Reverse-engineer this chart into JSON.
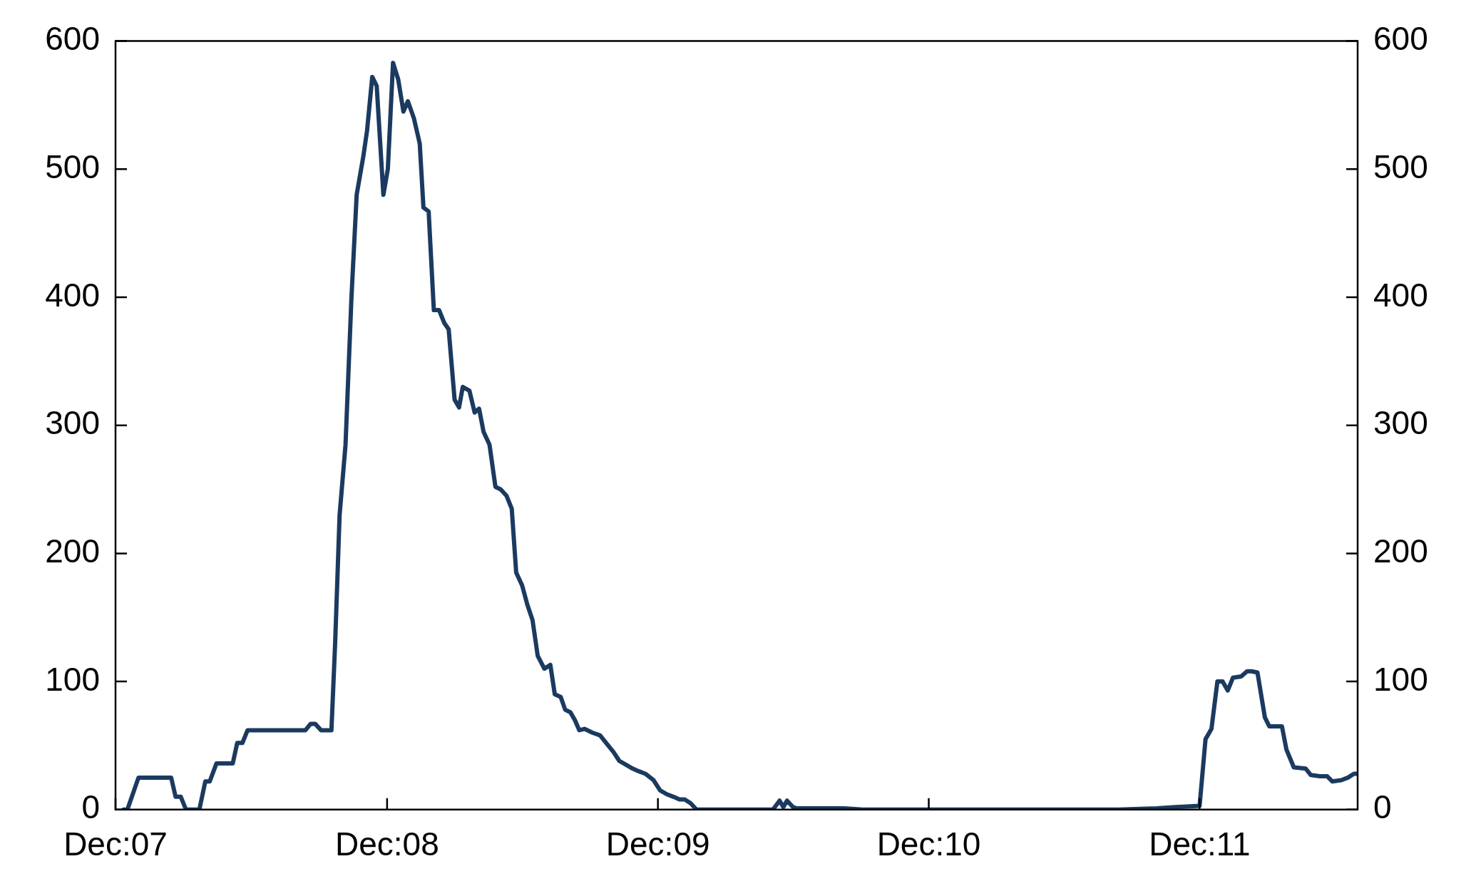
{
  "chart_data": {
    "type": "line",
    "xlim": [
      "2007-12-01",
      "2012-07-01"
    ],
    "xticks": [
      {
        "value": "2007-12-01",
        "label": "Dec:07"
      },
      {
        "value": "2008-12-01",
        "label": "Dec:08"
      },
      {
        "value": "2009-12-01",
        "label": "Dec:09"
      },
      {
        "value": "2010-12-01",
        "label": "Dec:10"
      },
      {
        "value": "2011-12-01",
        "label": "Dec:11"
      }
    ],
    "ylim": [
      0,
      600
    ],
    "yticks": [
      0,
      100,
      200,
      300,
      400,
      500,
      600
    ],
    "y2lim": [
      0,
      600
    ],
    "y2ticks": [
      0,
      100,
      200,
      300,
      400,
      500,
      600
    ],
    "marker": "none",
    "line_style": "solid",
    "series": [
      {
        "color": "#1b3a60",
        "x": [
          "2007-12-12",
          "2007-12-17",
          "2008-01-01",
          "2008-02-14",
          "2008-02-20",
          "2008-02-27",
          "2008-03-05",
          "2008-03-23",
          "2008-03-31",
          "2008-04-06",
          "2008-04-15",
          "2008-05-07",
          "2008-05-13",
          "2008-05-20",
          "2008-05-27",
          "2008-08-13",
          "2008-08-20",
          "2008-08-26",
          "2008-09-03",
          "2008-09-17",
          "2008-09-22",
          "2008-09-28",
          "2008-10-06",
          "2008-10-14",
          "2008-10-21",
          "2008-10-30",
          "2008-11-04",
          "2008-11-11",
          "2008-11-17",
          "2008-11-26",
          "2008-12-02",
          "2008-12-09",
          "2008-12-16",
          "2008-12-23",
          "2008-12-29",
          "2009-01-06",
          "2009-01-14",
          "2009-01-19",
          "2009-01-26",
          "2009-02-02",
          "2009-02-09",
          "2009-02-16",
          "2009-02-22",
          "2009-03-02",
          "2009-03-08",
          "2009-03-13",
          "2009-03-22",
          "2009-03-29",
          "2009-04-04",
          "2009-04-10",
          "2009-04-18",
          "2009-04-26",
          "2009-05-03",
          "2009-05-11",
          "2009-05-18",
          "2009-05-24",
          "2009-06-01",
          "2009-06-08",
          "2009-06-15",
          "2009-06-22",
          "2009-07-01",
          "2009-07-09",
          "2009-07-15",
          "2009-07-23",
          "2009-07-29",
          "2009-08-05",
          "2009-08-11",
          "2009-08-17",
          "2009-08-24",
          "2009-09-04",
          "2009-09-14",
          "2009-09-25",
          "2009-10-02",
          "2009-10-10",
          "2009-10-19",
          "2009-10-28",
          "2009-11-05",
          "2009-11-14",
          "2009-11-25",
          "2009-12-04",
          "2009-12-13",
          "2009-12-22",
          "2009-12-30",
          "2010-01-06",
          "2010-01-14",
          "2010-01-22",
          "2010-03-21",
          "2010-05-05",
          "2010-05-14",
          "2010-05-19",
          "2010-05-24",
          "2010-06-01",
          "2010-06-06",
          "2010-08-09",
          "2010-09-03",
          "2010-10-12",
          "2011-05-04",
          "2011-08-14",
          "2011-10-04",
          "2011-10-30",
          "2011-12-01",
          "2011-12-09",
          "2011-12-17",
          "2011-12-25",
          "2012-01-01",
          "2012-01-08",
          "2012-01-15",
          "2012-01-26",
          "2012-02-03",
          "2012-02-09",
          "2012-02-17",
          "2012-02-27",
          "2012-03-04",
          "2012-03-21",
          "2012-03-27",
          "2012-04-06",
          "2012-04-22",
          "2012-04-29",
          "2012-05-11",
          "2012-05-21",
          "2012-05-28",
          "2012-06-09",
          "2012-06-18",
          "2012-06-26",
          "2012-07-01"
        ],
        "values": [
          0,
          0,
          25,
          25,
          10,
          10,
          0,
          0,
          22,
          22,
          36,
          36,
          52,
          52,
          62,
          62,
          67,
          67,
          62,
          62,
          130,
          230,
          285,
          400,
          480,
          510,
          530,
          572,
          565,
          480,
          500,
          583,
          570,
          545,
          553,
          540,
          520,
          470,
          467,
          390,
          390,
          380,
          375,
          320,
          314,
          330,
          327,
          310,
          313,
          295,
          285,
          252,
          250,
          245,
          235,
          185,
          175,
          160,
          148,
          120,
          110,
          113,
          90,
          88,
          78,
          76,
          70,
          62,
          63,
          60,
          58,
          50,
          45,
          38,
          35,
          32,
          30,
          28,
          23,
          15,
          12,
          10,
          8,
          8,
          5,
          0,
          0,
          0,
          7,
          2,
          7,
          2,
          1,
          1,
          0,
          0,
          0,
          0,
          1,
          2,
          3,
          55,
          63,
          100,
          100,
          93,
          103,
          104,
          108,
          108,
          107,
          72,
          65,
          65,
          47,
          33,
          32,
          27,
          26,
          26,
          22,
          23,
          25,
          28,
          28
        ]
      }
    ]
  }
}
